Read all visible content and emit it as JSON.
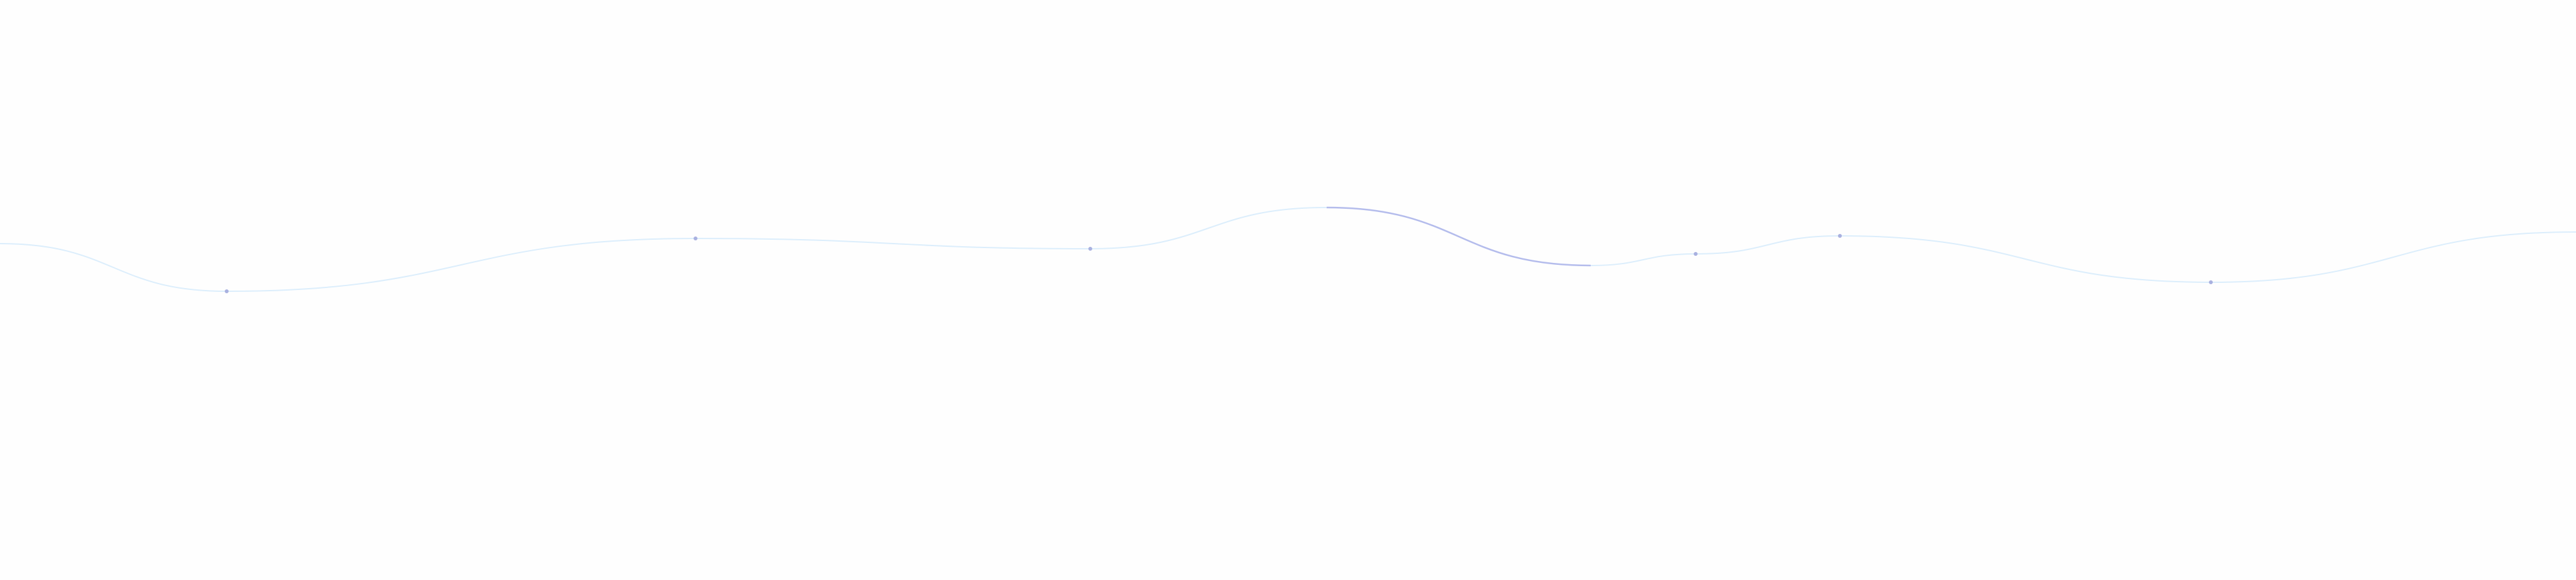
{
  "colors": {
    "background": "#fefefe",
    "line": "#dceefc",
    "highlight": "#b4bcec",
    "dot": "#a9b1e0"
  },
  "highlight_segment": {
    "from_point": 4,
    "to_point": 5
  },
  "points": 10
}
